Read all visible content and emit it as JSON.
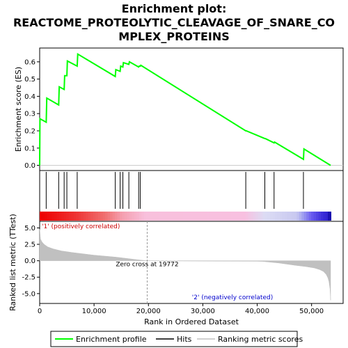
{
  "chart_data": {
    "type": "line",
    "title_lines": [
      "Enrichment plot:",
      "REACTOME_PROTEOLYTIC_CLEAVAGE_OF_SNARE_CO",
      "MPLEX_PROTEINS"
    ],
    "panels": {
      "es": {
        "ylabel": "Enrichment score (ES)",
        "ylim": [
          -0.03,
          0.68
        ],
        "yticks": [
          0.0,
          0.1,
          0.2,
          0.3,
          0.4,
          0.5,
          0.6
        ],
        "ytick_labels": [
          "0.0",
          "0.1",
          "0.2",
          "0.3",
          "0.4",
          "0.5",
          "0.6"
        ]
      },
      "metric": {
        "ylabel": "Ranked list metric (TTest)",
        "ylim": [
          -6.5,
          6.0
        ],
        "yticks": [
          5.0,
          2.5,
          0.0,
          -2.5,
          -5.0
        ],
        "ytick_labels": [
          "5.0",
          "2.5",
          "0.0",
          "-2.5",
          "-5.0"
        ],
        "zero_cross_label": "Zero cross at 19772",
        "zero_cross_x": 19772,
        "pos_label": "'1' (positively correlated)",
        "neg_label": "'2' (negatively correlated)"
      }
    },
    "xlabel": "Rank in Ordered Dataset",
    "xlim": [
      0,
      55800
    ],
    "xticks": [
      0,
      10000,
      20000,
      30000,
      40000,
      50000
    ],
    "xtick_labels": [
      "0",
      "10,000",
      "20,000",
      "30,000",
      "40,000",
      "50,000"
    ],
    "series": [
      {
        "name": "Enrichment profile",
        "color": "#00ff00",
        "x": [
          0,
          50,
          1200,
          1300,
          3500,
          3600,
          4500,
          4600,
          5000,
          5100,
          6900,
          7000,
          13900,
          14000,
          14800,
          14900,
          15300,
          15400,
          16400,
          16500,
          18200,
          18300,
          18500,
          18600,
          37900,
          38000,
          41400,
          41500,
          43100,
          43200,
          48500,
          48600,
          53500
        ],
        "y": [
          0.0,
          0.27,
          0.25,
          0.39,
          0.35,
          0.455,
          0.44,
          0.52,
          0.52,
          0.605,
          0.575,
          0.645,
          0.515,
          0.555,
          0.545,
          0.575,
          0.57,
          0.595,
          0.585,
          0.6,
          0.57,
          0.575,
          0.575,
          0.58,
          0.2,
          0.2,
          0.155,
          0.155,
          0.13,
          0.135,
          0.035,
          0.095,
          0.0
        ]
      }
    ],
    "hits": [
      1200,
      3500,
      4500,
      5000,
      6900,
      13900,
      14800,
      15300,
      16400,
      18200,
      18500,
      37900,
      41400,
      43100,
      48500
    ],
    "metric_curve": {
      "x": [
        0,
        150,
        400,
        800,
        1500,
        2500,
        4000,
        6000,
        8000,
        10000,
        12000,
        14000,
        16000,
        18000,
        19772,
        20500,
        30000,
        40000,
        41000,
        44000,
        47000,
        49000,
        50500,
        51500,
        52200,
        52700,
        53000,
        53200,
        53400,
        53500
      ],
      "y": [
        4.8,
        3.3,
        2.9,
        2.5,
        2.1,
        1.8,
        1.5,
        1.25,
        1.05,
        0.85,
        0.7,
        0.55,
        0.35,
        0.15,
        0.0,
        -0.02,
        -0.05,
        -0.08,
        -0.1,
        -0.35,
        -0.7,
        -0.9,
        -1.1,
        -1.35,
        -1.65,
        -2.1,
        -2.6,
        -3.2,
        -4.3,
        -6.0
      ]
    },
    "legend": {
      "entries": [
        "Enrichment profile",
        "Hits",
        "Ranking metric scores"
      ],
      "colors": [
        "#00ff00",
        "#000000",
        "#c0c0c0"
      ],
      "placement": "bottom"
    }
  }
}
